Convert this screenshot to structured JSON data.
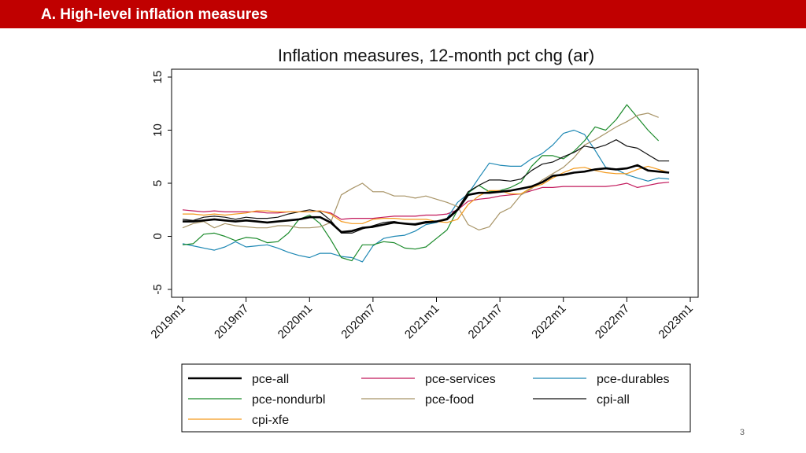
{
  "header": {
    "title": "A. High-level inflation measures"
  },
  "page_number": "3",
  "colors": {
    "header_bg": "#c00000",
    "header_text": "#ffffff"
  },
  "chart_data": {
    "type": "line",
    "title": "Inflation measures, 12-month pct chg (ar)",
    "xlabel": "",
    "ylabel": "",
    "ylim": [
      -5,
      15
    ],
    "yticks": [
      -5,
      0,
      5,
      10,
      15
    ],
    "ytick_labels": [
      "-5",
      "0",
      "5",
      "10",
      "15"
    ],
    "xlim": [
      0,
      48
    ],
    "xticks": [
      0,
      6,
      12,
      18,
      24,
      30,
      36,
      42,
      48
    ],
    "xtick_labels": [
      "2019m1",
      "2019m7",
      "2020m1",
      "2020m7",
      "2021m1",
      "2021m7",
      "2022m1",
      "2022m7",
      "2023m1"
    ],
    "grid": false,
    "legend_position": "bottom",
    "series": [
      {
        "name": "pce-all",
        "color": "#000000",
        "width": 2.6,
        "values": [
          1.4,
          1.4,
          1.5,
          1.6,
          1.5,
          1.4,
          1.5,
          1.4,
          1.3,
          1.4,
          1.5,
          1.6,
          1.8,
          1.8,
          1.3,
          0.4,
          0.5,
          0.8,
          0.9,
          1.1,
          1.3,
          1.2,
          1.1,
          1.3,
          1.4,
          1.6,
          2.5,
          3.9,
          4.1,
          4.1,
          4.2,
          4.3,
          4.5,
          4.7,
          5.1,
          5.7,
          5.8,
          6.0,
          6.1,
          6.3,
          6.4,
          6.3,
          6.4,
          6.7,
          6.2,
          6.1,
          6.0
        ]
      },
      {
        "name": "pce-services",
        "color": "#c2185b",
        "width": 1.2,
        "values": [
          2.5,
          2.4,
          2.3,
          2.4,
          2.3,
          2.3,
          2.3,
          2.3,
          2.2,
          2.2,
          2.3,
          2.3,
          2.3,
          2.4,
          2.2,
          1.6,
          1.7,
          1.7,
          1.7,
          1.8,
          1.9,
          1.9,
          1.9,
          2.0,
          2.0,
          2.1,
          2.5,
          3.3,
          3.5,
          3.6,
          3.8,
          3.9,
          4.0,
          4.3,
          4.6,
          4.6,
          4.7,
          4.7,
          4.7,
          4.7,
          4.7,
          4.8,
          5.0,
          4.6,
          4.8,
          5.0,
          5.1
        ]
      },
      {
        "name": "pce-durables",
        "color": "#1e88b4",
        "width": 1.2,
        "values": [
          -0.7,
          -0.9,
          -1.1,
          -1.3,
          -1.0,
          -0.5,
          -1.0,
          -0.9,
          -0.8,
          -1.1,
          -1.5,
          -1.8,
          -2.0,
          -1.6,
          -1.6,
          -1.9,
          -2.0,
          -2.4,
          -0.9,
          -0.2,
          0.0,
          0.1,
          0.5,
          1.1,
          1.3,
          1.7,
          3.2,
          4.0,
          5.5,
          6.9,
          6.7,
          6.6,
          6.6,
          7.3,
          7.8,
          8.6,
          9.7,
          10.0,
          9.6,
          8.1,
          6.5,
          6.3,
          5.8,
          5.5,
          5.2,
          5.5,
          5.4
        ]
      },
      {
        "name": "pce-nondurbl",
        "color": "#1a8a2a",
        "width": 1.2,
        "values": [
          -0.8,
          -0.7,
          0.2,
          0.3,
          0.0,
          -0.4,
          -0.1,
          -0.2,
          -0.6,
          -0.5,
          0.3,
          1.6,
          2.0,
          1.2,
          -0.3,
          -2.0,
          -2.3,
          -0.8,
          -0.8,
          -0.5,
          -0.6,
          -1.1,
          -1.2,
          -1.0,
          -0.2,
          0.6,
          2.5,
          4.1,
          4.8,
          4.2,
          4.3,
          4.6,
          5.1,
          6.6,
          7.6,
          7.6,
          7.3,
          8.0,
          9.0,
          10.3,
          10.0,
          11.0,
          12.4,
          11.2,
          10.0,
          9.0
        ]
      },
      {
        "name": "pce-food",
        "color": "#a89467",
        "width": 1.2,
        "values": [
          0.8,
          1.2,
          1.4,
          0.8,
          1.2,
          1.0,
          0.9,
          0.8,
          0.8,
          1.0,
          1.0,
          0.8,
          0.8,
          0.9,
          1.3,
          3.9,
          4.5,
          5.0,
          4.2,
          4.2,
          3.8,
          3.8,
          3.6,
          3.8,
          3.5,
          3.2,
          2.8,
          1.1,
          0.6,
          0.9,
          2.2,
          2.7,
          3.9,
          4.5,
          5.3,
          5.9,
          6.5,
          7.4,
          8.6,
          9.1,
          9.7,
          10.3,
          10.8,
          11.4,
          11.6,
          11.2
        ]
      },
      {
        "name": "cpi-all",
        "color": "#111111",
        "width": 1.2,
        "values": [
          1.6,
          1.5,
          1.8,
          1.9,
          1.8,
          1.6,
          1.8,
          1.7,
          1.7,
          1.8,
          2.1,
          2.3,
          2.5,
          2.3,
          1.5,
          0.3,
          0.3,
          0.7,
          1.0,
          1.3,
          1.4,
          1.2,
          1.2,
          1.4,
          1.4,
          1.7,
          2.6,
          4.2,
          4.8,
          5.3,
          5.3,
          5.2,
          5.4,
          6.2,
          6.8,
          7.0,
          7.5,
          7.9,
          8.5,
          8.3,
          8.6,
          9.1,
          8.5,
          8.3,
          7.7,
          7.1,
          7.1
        ]
      },
      {
        "name": "cpi-xfe",
        "color": "#f39a1e",
        "width": 1.2,
        "values": [
          2.1,
          2.1,
          2.0,
          2.1,
          2.0,
          2.1,
          2.2,
          2.4,
          2.4,
          2.3,
          2.3,
          2.3,
          2.3,
          2.4,
          2.1,
          1.4,
          1.2,
          1.2,
          1.6,
          1.7,
          1.7,
          1.6,
          1.6,
          1.6,
          1.4,
          1.3,
          1.6,
          3.0,
          3.8,
          4.3,
          4.3,
          4.0,
          4.0,
          4.6,
          4.9,
          5.5,
          6.0,
          6.4,
          6.5,
          6.2,
          6.0,
          5.9,
          5.9,
          6.3,
          6.6,
          6.3,
          6.0
        ]
      }
    ]
  }
}
